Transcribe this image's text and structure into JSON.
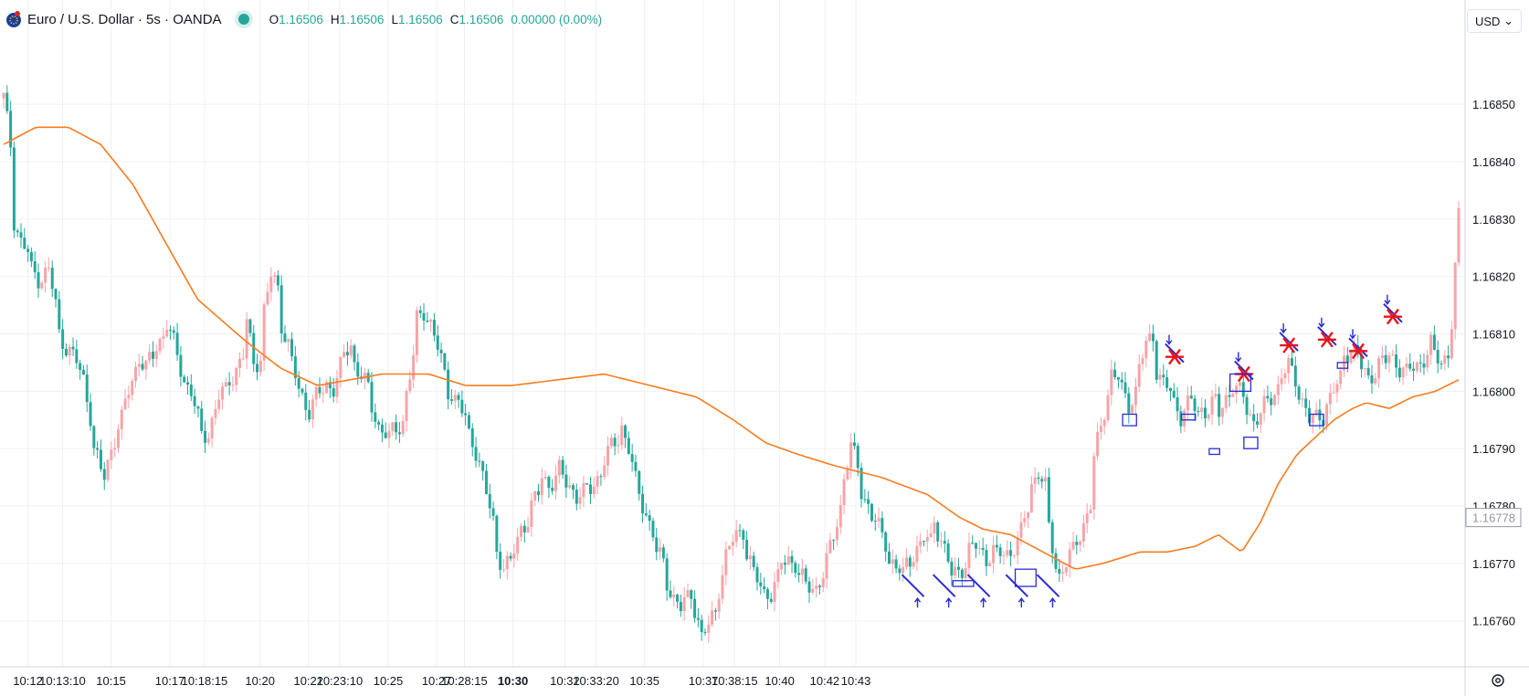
{
  "header": {
    "title": "Euro / U.S. Dollar · 5s · OANDA",
    "ohlc": [
      {
        "label": "O",
        "value": "1.16506"
      },
      {
        "label": "H",
        "value": "1.16506"
      },
      {
        "label": "L",
        "value": "1.16506"
      },
      {
        "label": "C",
        "value": "1.16506"
      }
    ],
    "change": "0.00000 (0.00%)"
  },
  "currency": "USD",
  "colors": {
    "up": "#f7a4a8",
    "down": "#26a69a",
    "ma": "#f57c1f",
    "grid": "#eef0f3",
    "annotation_blue": "#2b2bd6",
    "annotation_red": "#e8141a"
  },
  "chart_data": {
    "type": "candlestick",
    "ylim": [
      1.16752,
      1.16861
    ],
    "y_ticks": [
      "1.16850",
      "1.16840",
      "1.16830",
      "1.16820",
      "1.16810",
      "1.16800",
      "1.16790",
      "1.16780",
      "1.16770",
      "1.16760"
    ],
    "current_price_label": "1.16778",
    "x_ticks": [
      {
        "label": "10:12",
        "bold": false
      },
      {
        "label": "10:13:10",
        "bold": false
      },
      {
        "label": "10:15",
        "bold": false
      },
      {
        "label": "10:17",
        "bold": false
      },
      {
        "label": "10:18:15",
        "bold": false
      },
      {
        "label": "10:20",
        "bold": false
      },
      {
        "label": "10:22",
        "bold": false
      },
      {
        "label": "10:23:10",
        "bold": false
      },
      {
        "label": "10:25",
        "bold": false
      },
      {
        "label": "10:27",
        "bold": false
      },
      {
        "label": "10:28:15",
        "bold": false
      },
      {
        "label": "10:30",
        "bold": true
      },
      {
        "label": "10:32",
        "bold": false
      },
      {
        "label": "10:33:20",
        "bold": false
      },
      {
        "label": "10:35",
        "bold": false
      },
      {
        "label": "10:37",
        "bold": false
      },
      {
        "label": "10:38:15",
        "bold": false
      },
      {
        "label": "10:40",
        "bold": false
      },
      {
        "label": "10:42",
        "bold": false
      },
      {
        "label": "10:43",
        "bold": false
      }
    ],
    "tick_index": [
      7,
      17,
      31,
      48,
      58,
      74,
      88,
      97,
      111,
      125,
      133,
      147,
      162,
      171,
      185,
      202,
      211,
      224,
      237,
      246
    ],
    "price_path": [
      1.16851,
      1.16843,
      1.1683,
      1.16826,
      1.16824,
      1.16821,
      1.1682,
      1.1682,
      1.16821,
      1.16815,
      1.1681,
      1.16808,
      1.16806,
      1.16805,
      1.16802,
      1.16796,
      1.1679,
      1.16786,
      1.16785,
      1.1679,
      1.16794,
      1.16795,
      1.168,
      1.16804,
      1.16806,
      1.16804,
      1.16806,
      1.16808,
      1.1681,
      1.16812,
      1.16808,
      1.16804,
      1.16802,
      1.168,
      1.16795,
      1.16792,
      1.16793,
      1.16797,
      1.16799,
      1.168,
      1.16802,
      1.16804,
      1.16806,
      1.16812,
      1.16805,
      1.16806,
      1.16814,
      1.1682,
      1.16818,
      1.16812,
      1.16808,
      1.16805,
      1.168,
      1.16798,
      1.16797,
      1.16799,
      1.168,
      1.16801,
      1.16801,
      1.16804,
      1.16806,
      1.16808,
      1.16805,
      1.16803,
      1.168,
      1.16797,
      1.16794,
      1.16793,
      1.16792,
      1.16793,
      1.16795,
      1.168,
      1.16806,
      1.16812,
      1.16814,
      1.16812,
      1.1681,
      1.16805,
      1.168,
      1.168,
      1.16798,
      1.16795,
      1.16792,
      1.1679,
      1.16788,
      1.16782,
      1.16777,
      1.16772,
      1.1677,
      1.1677,
      1.16772,
      1.16776,
      1.16778,
      1.1678,
      1.16782,
      1.16785,
      1.16784,
      1.16785,
      1.16786,
      1.16784,
      1.16783,
      1.16782,
      1.16782,
      1.16783,
      1.16784,
      1.16786,
      1.16788,
      1.1679,
      1.16792,
      1.16794,
      1.1679,
      1.16784,
      1.16782,
      1.16779,
      1.16775,
      1.16772,
      1.1677,
      1.16767,
      1.16764,
      1.16762,
      1.16763,
      1.16765,
      1.1676,
      1.16757,
      1.16759,
      1.16762,
      1.16766,
      1.16771,
      1.16774,
      1.16775,
      1.16776,
      1.16772,
      1.16768,
      1.16766,
      1.16765,
      1.16765,
      1.16767,
      1.1677,
      1.16771,
      1.1677,
      1.16768,
      1.16766,
      1.16766,
      1.16766,
      1.16768,
      1.1677,
      1.16775,
      1.1678,
      1.16785,
      1.1679,
      1.16787,
      1.16783,
      1.1678,
      1.16778,
      1.16776,
      1.16774,
      1.16771,
      1.16769,
      1.16768,
      1.1677,
      1.16772,
      1.16773,
      1.16774,
      1.16774,
      1.16778,
      1.16774,
      1.1677,
      1.16768,
      1.16769,
      1.1677,
      1.16772,
      1.16773,
      1.16772,
      1.16771,
      1.16772,
      1.16771,
      1.16772,
      1.16772,
      1.16773,
      1.16775,
      1.1678,
      1.16784,
      1.16786,
      1.16783,
      1.16776,
      1.1677,
      1.16768,
      1.1677,
      1.16772,
      1.16774,
      1.16777,
      1.1678,
      1.16788,
      1.16794,
      1.168,
      1.16803,
      1.16802,
      1.168,
      1.16798,
      1.168,
      1.16804,
      1.16808,
      1.1681,
      1.16804,
      1.16801,
      1.168,
      1.16798,
      1.16796,
      1.16797,
      1.16798,
      1.16796,
      1.16797,
      1.16797,
      1.16798,
      1.16796,
      1.16799,
      1.16801,
      1.168,
      1.16799,
      1.16797,
      1.16795,
      1.16796,
      1.16797,
      1.16799,
      1.16801,
      1.16803,
      1.16804,
      1.16802,
      1.168,
      1.16797,
      1.16795,
      1.16795,
      1.16796,
      1.16798,
      1.168,
      1.16802,
      1.16806,
      1.16808,
      1.16806,
      1.16804,
      1.16802,
      1.16803,
      1.16805,
      1.16805,
      1.16806,
      1.16805,
      1.16804,
      1.16803,
      1.16804,
      1.16805,
      1.16806,
      1.16808,
      1.16806,
      1.16805,
      1.16807,
      1.16812,
      1.1683
    ],
    "ma_path": [
      1.16843,
      1.16846,
      1.16846,
      1.16843,
      1.16836,
      1.16826,
      1.16816,
      1.16809,
      1.16804,
      1.16801,
      1.16802,
      1.16803,
      1.16803,
      1.16801,
      1.16801,
      1.16802,
      1.16803,
      1.16801,
      1.16799,
      1.16795,
      1.16791,
      1.16789,
      1.16787,
      1.16785,
      1.16782,
      1.16778,
      1.16776,
      1.16775,
      1.16772,
      1.16769,
      1.1677,
      1.16771,
      1.16772,
      1.16772,
      1.16773,
      1.16775,
      1.16772,
      1.16777,
      1.16784,
      1.16789,
      1.16792,
      1.16795,
      1.16797,
      1.16798,
      1.16797,
      1.16799,
      1.168,
      1.16802
    ],
    "ma_index": [
      0,
      7,
      14,
      21,
      28,
      35,
      42,
      52,
      60,
      68,
      75,
      82,
      92,
      100,
      110,
      120,
      130,
      140,
      150,
      158,
      165,
      172,
      180,
      190,
      200,
      207,
      212,
      218,
      225,
      232,
      238,
      242,
      246,
      252,
      258,
      263,
      268,
      272,
      276,
      280,
      284,
      288,
      292,
      295,
      300,
      305,
      310,
      315
    ]
  },
  "annotations": {
    "buy_marks": [
      {
        "i": 263,
        "p": 1.16762
      },
      {
        "i": 272,
        "p": 1.16762
      },
      {
        "i": 282,
        "p": 1.16762
      },
      {
        "i": 293,
        "p": 1.16762
      },
      {
        "i": 302,
        "p": 1.16762
      }
    ],
    "sell_marks": [
      {
        "i": 338,
        "p": 1.16806
      },
      {
        "i": 358,
        "p": 1.16803
      },
      {
        "i": 371,
        "p": 1.16808
      },
      {
        "i": 382,
        "p": 1.16809
      },
      {
        "i": 391,
        "p": 1.16807
      },
      {
        "i": 401,
        "p": 1.16813
      }
    ],
    "boxes": [
      {
        "i0": 274,
        "i1": 280,
        "p0": 1.16767,
        "p1": 1.16766
      },
      {
        "i0": 292,
        "i1": 298,
        "p0": 1.16769,
        "p1": 1.16766
      },
      {
        "i0": 323,
        "i1": 327,
        "p0": 1.16796,
        "p1": 1.16794
      },
      {
        "i0": 340,
        "i1": 344,
        "p0": 1.16796,
        "p1": 1.16795
      },
      {
        "i0": 348,
        "i1": 351,
        "p0": 1.1679,
        "p1": 1.16789
      },
      {
        "i0": 354,
        "i1": 360,
        "p0": 1.16803,
        "p1": 1.168
      },
      {
        "i0": 358,
        "i1": 362,
        "p0": 1.16792,
        "p1": 1.1679
      },
      {
        "i0": 377,
        "i1": 381,
        "p0": 1.16796,
        "p1": 1.16794
      },
      {
        "i0": 385,
        "i1": 388,
        "p0": 1.16805,
        "p1": 1.16804
      }
    ]
  }
}
